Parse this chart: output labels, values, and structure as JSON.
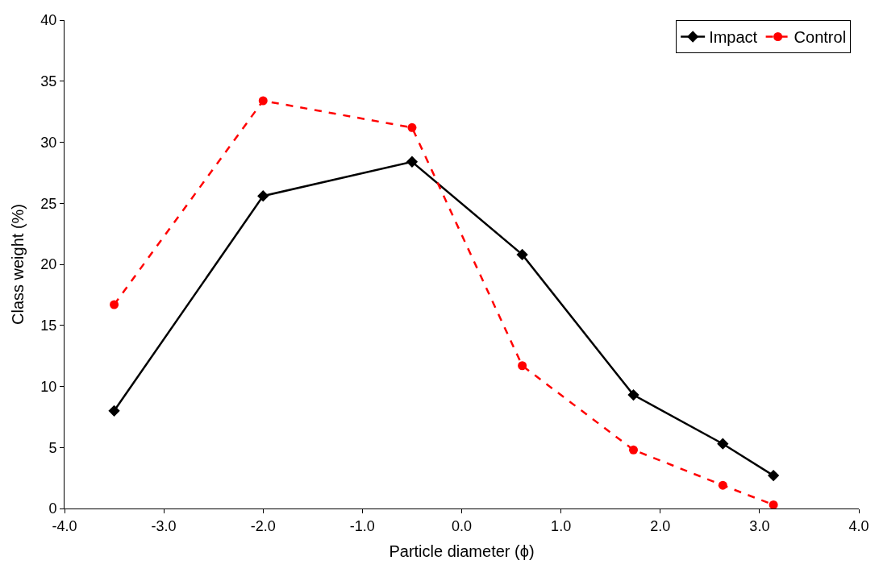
{
  "chart_data": {
    "type": "line",
    "xlabel": "Particle diameter (ϕ)",
    "ylabel": "Class weight (%)",
    "x": [
      -3.5,
      -2.0,
      -0.5,
      0.61,
      1.73,
      2.63,
      3.14
    ],
    "series": [
      {
        "name": "Impact",
        "color": "#000000",
        "values": [
          8.0,
          25.6,
          28.4,
          20.8,
          9.3,
          5.3,
          2.7
        ],
        "marker": "diamond",
        "line_style": "solid"
      },
      {
        "name": "Control",
        "color": "#ff0000",
        "values": [
          16.7,
          33.4,
          31.2,
          11.7,
          4.8,
          1.9,
          0.3
        ],
        "marker": "circle",
        "line_style": "dashed"
      }
    ],
    "xlim": [
      -4,
      4
    ],
    "xticks": [
      {
        "value": -4,
        "label": "-4.0"
      },
      {
        "value": -3,
        "label": "-3.0"
      },
      {
        "value": -2,
        "label": "-2.0"
      },
      {
        "value": -1,
        "label": "-1.0"
      },
      {
        "value": 0,
        "label": "0.0"
      },
      {
        "value": 1,
        "label": "1.0"
      },
      {
        "value": 2,
        "label": "2.0"
      },
      {
        "value": 3,
        "label": "3.0"
      },
      {
        "value": 4,
        "label": "4.0"
      }
    ],
    "ylim": [
      0,
      40
    ],
    "yticks": [
      0,
      5,
      10,
      15,
      20,
      25,
      30,
      35,
      40
    ],
    "legend": "top right"
  }
}
